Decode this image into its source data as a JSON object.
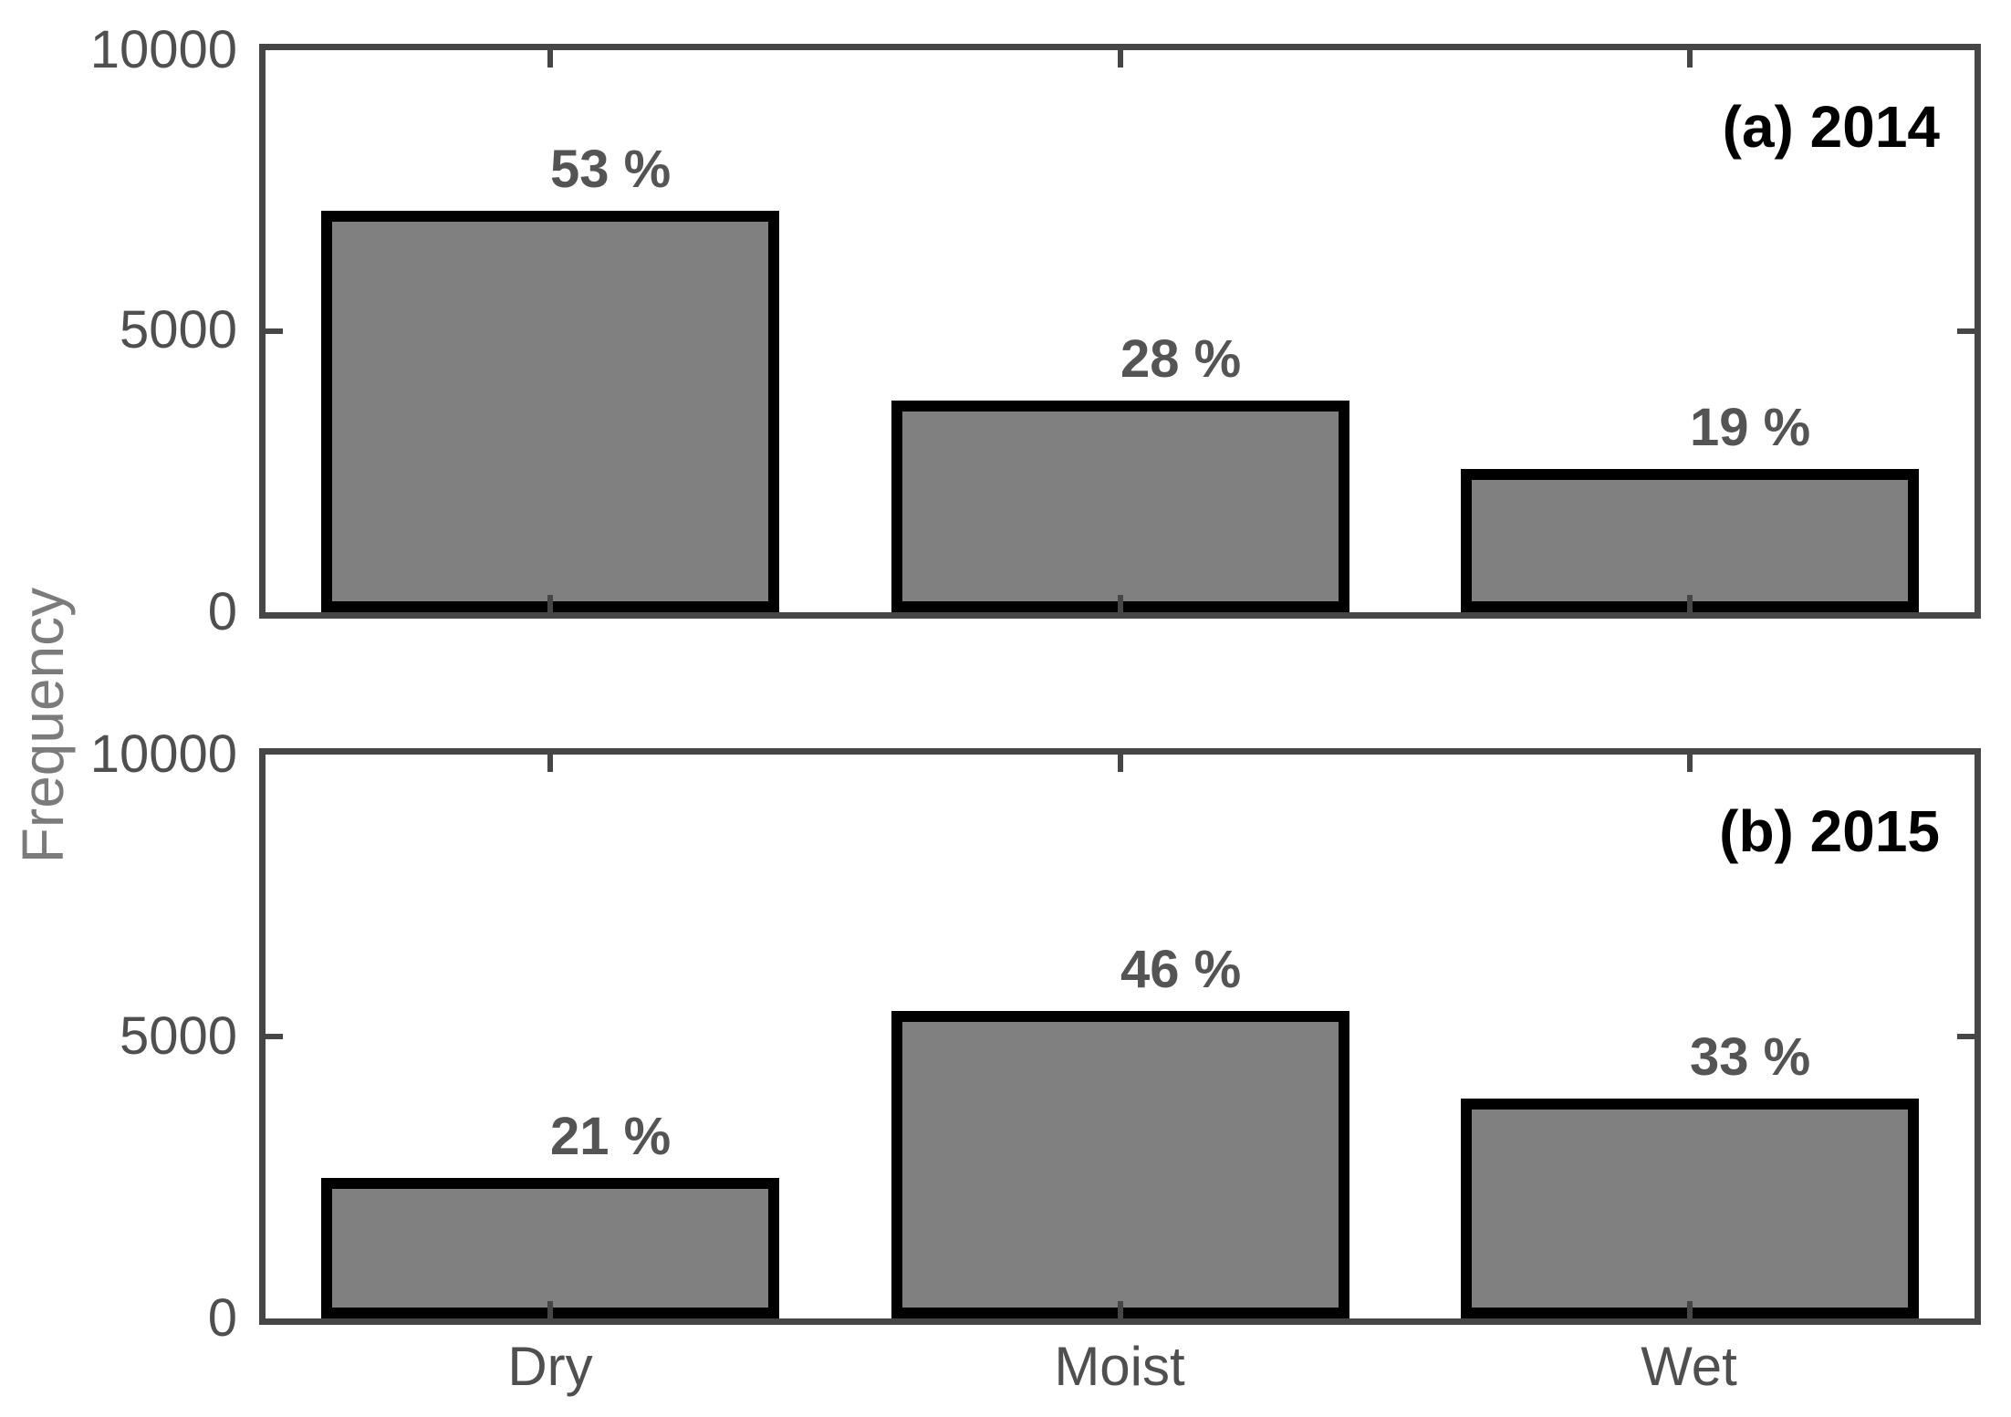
{
  "ylabel": "Frequency",
  "categories": [
    "Dry",
    "Moist",
    "Wet"
  ],
  "colors": {
    "bar_fill": "#808080",
    "bar_edge": "#000000",
    "axis_line": "#464646",
    "tick_label": "#4f4f4f",
    "pct_label": "#545454",
    "ylabel_color": "#7b7b7b",
    "panel_label_color": "#000000",
    "background": "#ffffff"
  },
  "chart_data": [
    {
      "type": "bar",
      "panel_label": "(a) 2014",
      "categories": [
        "Dry",
        "Moist",
        "Wet"
      ],
      "values": [
        7150,
        3770,
        2550
      ],
      "bar_labels": [
        "53 %",
        "28 %",
        "19 %"
      ],
      "ylabel": "Frequency",
      "ylim": [
        0,
        10000
      ],
      "yticks": [
        0,
        5000,
        10000
      ],
      "ytick_labels": [
        "0",
        "5000",
        "10000"
      ],
      "grid": "off",
      "legend": "none",
      "bar_width_fraction": 0.8
    },
    {
      "type": "bar",
      "panel_label": "(b) 2015",
      "categories": [
        "Dry",
        "Moist",
        "Wet"
      ],
      "values": [
        2490,
        5460,
        3900
      ],
      "bar_labels": [
        "21 %",
        "46 %",
        "33 %"
      ],
      "ylabel": "Frequency",
      "ylim": [
        0,
        10000
      ],
      "yticks": [
        0,
        5000,
        10000
      ],
      "ytick_labels": [
        "0",
        "5000",
        "10000"
      ],
      "grid": "off",
      "legend": "none",
      "bar_width_fraction": 0.8
    }
  ]
}
